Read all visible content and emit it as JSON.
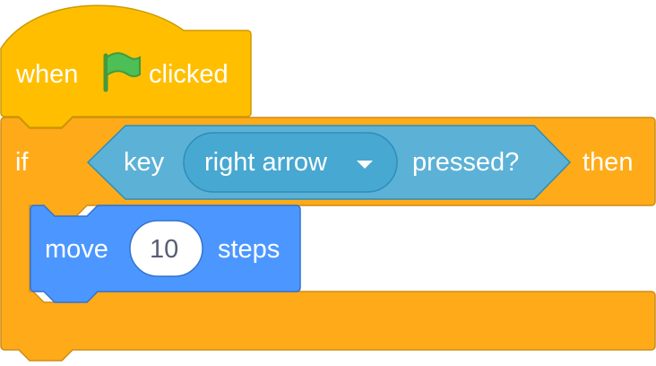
{
  "colors": {
    "events_fill": "#ffbf00",
    "events_stroke": "#cc9900",
    "control_fill": "#ffab19",
    "control_stroke": "#cf8b17",
    "sensing_fill": "#5cb1d6",
    "sensing_stroke": "#2e8eb8",
    "sensing_menu_fill": "#47a8d1",
    "motion_fill": "#4c97ff",
    "motion_stroke": "#3373cc",
    "flag_fill": "#4cbf56",
    "flag_stroke": "#45993d",
    "input_fill": "#ffffff",
    "input_text": "#575e75"
  },
  "hat_block": {
    "category": "events",
    "label_when": "when",
    "icon": "green-flag-icon",
    "label_clicked": "clicked"
  },
  "if_block": {
    "category": "control",
    "label_if": "if",
    "label_then": "then",
    "condition": {
      "category": "sensing",
      "label_key": "key",
      "key_menu": {
        "selected": "right arrow",
        "icon": "dropdown-arrow-icon"
      },
      "label_pressed": "pressed?"
    },
    "body": [
      {
        "category": "motion",
        "label_move": "move",
        "steps_value": "10",
        "label_steps": "steps"
      }
    ]
  }
}
